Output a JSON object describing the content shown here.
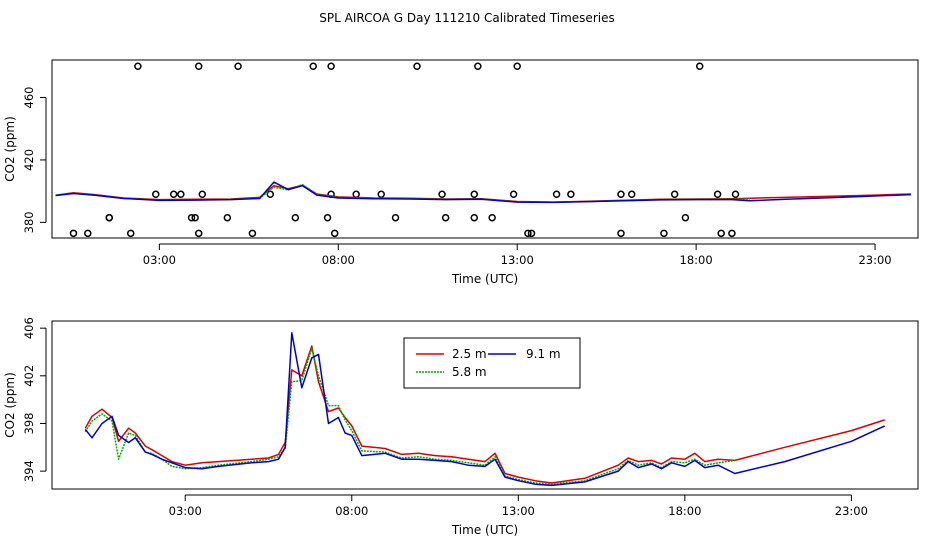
{
  "title": "SPL AIRCOA G  Day 111210  Calibrated Timeseries",
  "colors": {
    "s25": "#dd0000",
    "s58": "#00aa00",
    "s91": "#0000cc",
    "circle": "#000000"
  },
  "chart_data": [
    {
      "type": "line",
      "xlabel": "Time (UTC)",
      "ylabel": "CO2 (ppm)",
      "xlim": [
        0,
        24.2
      ],
      "ylim": [
        370,
        484
      ],
      "xticks": [
        3,
        8,
        13,
        18,
        23
      ],
      "xtick_labels": [
        "03:00",
        "08:00",
        "13:00",
        "18:00",
        "23:00"
      ],
      "yticks": [
        380,
        420,
        460
      ],
      "series": [
        {
          "name": "2.5 m",
          "color": "#dd0000",
          "x": [
            0.1,
            0.6,
            1.2,
            2.0,
            3.0,
            4.0,
            5.0,
            5.8,
            6.2,
            6.6,
            7.0,
            7.4,
            8.0,
            9.0,
            10.0,
            11.0,
            12.0,
            13.0,
            14.0,
            15.0,
            16.0,
            17.0,
            18.0,
            19.0,
            20.0,
            21.5,
            23.0,
            24.0
          ],
          "y": [
            397.4,
            399.0,
            397.8,
            395.6,
            394.6,
            394.8,
            395.0,
            396.0,
            403.5,
            401.6,
            403.8,
            398.2,
            396.3,
            395.6,
            395.4,
            395.0,
            395.2,
            393.4,
            393.0,
            393.6,
            394.2,
            394.8,
            395.0,
            395.2,
            395.8,
            396.6,
            397.5,
            398.2
          ]
        },
        {
          "name": "5.8 m",
          "color": "#00aa00",
          "x": [
            0.1,
            0.6,
            1.2,
            2.0,
            3.0,
            4.0,
            5.0,
            5.8,
            6.2,
            6.6,
            7.0,
            7.4,
            8.0,
            9.0,
            10.0,
            11.0,
            12.0,
            13.0,
            14.0,
            15.0,
            16.0,
            17.0,
            18.0,
            19.0,
            19.5
          ],
          "y": [
            397.3,
            398.7,
            397.5,
            395.4,
            394.2,
            394.4,
            394.7,
            395.5,
            402.5,
            400.8,
            404.2,
            397.8,
            396.0,
            395.4,
            395.2,
            394.8,
            395.0,
            393.2,
            392.9,
            393.4,
            394.1,
            394.6,
            394.8,
            394.8,
            395.0
          ]
        },
        {
          "name": "9.1 m",
          "color": "#0000cc",
          "x": [
            0.1,
            0.6,
            1.2,
            2.0,
            3.0,
            4.0,
            5.0,
            5.8,
            6.2,
            6.6,
            7.0,
            7.4,
            8.0,
            9.0,
            10.0,
            11.0,
            12.0,
            13.0,
            14.0,
            15.0,
            16.0,
            17.0,
            18.0,
            19.0,
            19.5,
            20.5,
            22.0,
            24.0
          ],
          "y": [
            397.2,
            398.5,
            397.4,
            395.3,
            394.1,
            394.3,
            394.6,
            395.3,
            405.8,
            401.0,
            403.5,
            397.5,
            395.6,
            395.2,
            395.0,
            394.6,
            394.8,
            393.0,
            392.8,
            393.3,
            393.9,
            394.4,
            394.6,
            394.6,
            393.8,
            394.8,
            396.0,
            397.8
          ]
        }
      ],
      "points": {
        "x": [
          2.4,
          4.1,
          5.2,
          7.3,
          7.8,
          10.2,
          11.9,
          13.0,
          18.1,
          1.0,
          2.2,
          4.1,
          5.6,
          3.6,
          4.2,
          6.1,
          7.8,
          8.5,
          9.2,
          10.9,
          11.8,
          12.9,
          14.5,
          16.2,
          17.4,
          19.1,
          1.6,
          2.9,
          3.9,
          4.9,
          6.8,
          7.9,
          9.6,
          11.0,
          13.4,
          15.9,
          17.7,
          19.0,
          0.6,
          1.6,
          3.4,
          4.0,
          7.7,
          11.8,
          12.3,
          13.3,
          14.1,
          15.9,
          17.1,
          18.6,
          18.7
        ],
        "y": [
          480,
          480,
          480,
          480,
          480,
          480,
          480,
          480,
          480,
          373,
          373,
          373,
          373,
          398,
          398,
          398,
          398,
          398,
          398,
          398,
          398,
          398,
          398,
          398,
          398,
          398,
          383,
          398,
          383,
          383,
          383,
          373,
          383,
          383,
          373,
          398,
          383,
          373,
          373,
          383,
          398,
          383,
          383,
          383,
          383,
          373,
          398,
          373,
          373,
          398,
          373
        ]
      }
    },
    {
      "type": "line",
      "xlabel": "Time (UTC)",
      "ylabel": "CO2 (ppm)",
      "xlim": [
        -1.0,
        25.0
      ],
      "ylim": [
        392.5,
        406.6
      ],
      "xticks": [
        3,
        8,
        13,
        18,
        23
      ],
      "xtick_labels": [
        "03:00",
        "08:00",
        "13:00",
        "18:00",
        "23:00"
      ],
      "yticks": [
        394,
        398,
        402,
        406
      ],
      "legend": {
        "position": "top-center",
        "entries": [
          "2.5 m",
          "9.1 m",
          "5.8 m"
        ]
      },
      "series": [
        {
          "name": "2.5 m",
          "color": "#dd0000",
          "x": [
            0.0,
            0.2,
            0.5,
            0.8,
            1.0,
            1.3,
            1.5,
            1.8,
            2.0,
            2.3,
            2.6,
            3.0,
            3.5,
            4.0,
            5.0,
            5.5,
            5.8,
            6.0,
            6.2,
            6.5,
            6.8,
            7.0,
            7.3,
            7.6,
            7.8,
            8.0,
            8.3,
            9.0,
            9.5,
            10.0,
            10.5,
            11.0,
            11.5,
            12.0,
            12.3,
            12.6,
            13.0,
            13.5,
            14.0,
            15.0,
            16.0,
            16.3,
            16.6,
            17.0,
            17.3,
            17.6,
            18.0,
            18.3,
            18.6,
            19.0,
            19.5,
            21.0,
            23.0,
            24.0
          ],
          "y": [
            397.6,
            398.6,
            399.2,
            398.5,
            396.5,
            397.6,
            397.2,
            396.1,
            395.8,
            395.3,
            394.8,
            394.5,
            394.7,
            394.8,
            395.0,
            395.1,
            395.4,
            396.4,
            402.5,
            402.0,
            404.5,
            401.5,
            399.0,
            399.3,
            398.5,
            397.8,
            396.1,
            395.9,
            395.4,
            395.5,
            395.3,
            395.2,
            395.0,
            394.8,
            395.5,
            393.8,
            393.5,
            393.2,
            393.0,
            393.4,
            394.5,
            395.1,
            394.8,
            394.9,
            394.6,
            395.1,
            395.0,
            395.5,
            394.8,
            395.0,
            394.9,
            396.0,
            397.4,
            398.3
          ]
        },
        {
          "name": "5.8 m",
          "color": "#00aa00",
          "x": [
            0.0,
            0.2,
            0.5,
            0.8,
            1.0,
            1.3,
            1.5,
            1.8,
            2.0,
            2.3,
            2.6,
            3.0,
            3.5,
            4.0,
            5.0,
            5.5,
            5.8,
            6.0,
            6.2,
            6.5,
            6.8,
            7.0,
            7.3,
            7.6,
            7.8,
            8.0,
            8.3,
            9.0,
            9.5,
            10.0,
            10.5,
            11.0,
            11.5,
            12.0,
            12.3,
            12.6,
            13.0,
            13.5,
            14.0,
            15.0,
            16.0,
            16.3,
            16.6,
            17.0,
            17.3,
            17.6,
            18.0,
            18.3,
            18.6,
            19.0,
            19.5
          ],
          "y": [
            397.3,
            398.2,
            398.8,
            398.2,
            395.0,
            397.2,
            397.0,
            395.6,
            395.5,
            395.0,
            394.4,
            394.2,
            394.3,
            394.5,
            394.8,
            395.0,
            395.2,
            395.9,
            401.5,
            401.6,
            404.3,
            402.0,
            399.5,
            399.5,
            398.3,
            397.4,
            395.7,
            395.6,
            395.1,
            395.2,
            395.0,
            394.9,
            394.7,
            394.5,
            395.2,
            393.6,
            393.3,
            393.0,
            392.9,
            393.2,
            394.2,
            394.9,
            394.5,
            394.7,
            394.3,
            394.8,
            394.7,
            395.0,
            394.5,
            394.7,
            394.9
          ]
        },
        {
          "name": "9.1 m",
          "color": "#0000cc",
          "x": [
            0.0,
            0.2,
            0.5,
            0.8,
            1.0,
            1.3,
            1.5,
            1.8,
            2.0,
            2.3,
            2.6,
            3.0,
            3.5,
            4.0,
            5.0,
            5.5,
            5.8,
            6.0,
            6.2,
            6.5,
            6.8,
            7.0,
            7.3,
            7.6,
            7.8,
            8.0,
            8.3,
            9.0,
            9.5,
            10.0,
            10.5,
            11.0,
            11.5,
            12.0,
            12.3,
            12.6,
            13.0,
            13.5,
            14.0,
            15.0,
            16.0,
            16.3,
            16.6,
            17.0,
            17.3,
            17.6,
            18.0,
            18.3,
            18.6,
            19.0,
            19.5,
            21.0,
            23.0,
            24.0
          ],
          "y": [
            397.5,
            396.8,
            398.0,
            398.6,
            397.0,
            396.4,
            396.8,
            395.6,
            395.4,
            395.0,
            394.7,
            394.3,
            394.2,
            394.4,
            394.7,
            394.8,
            395.0,
            396.0,
            405.6,
            401.0,
            403.5,
            403.8,
            398.0,
            398.5,
            397.2,
            397.0,
            395.3,
            395.5,
            395.0,
            395.0,
            394.9,
            394.8,
            394.5,
            394.4,
            395.0,
            393.5,
            393.2,
            392.9,
            392.8,
            393.1,
            394.0,
            394.8,
            394.3,
            394.6,
            394.2,
            394.7,
            394.4,
            394.9,
            394.3,
            394.5,
            393.8,
            394.8,
            396.5,
            397.8
          ]
        }
      ]
    }
  ]
}
